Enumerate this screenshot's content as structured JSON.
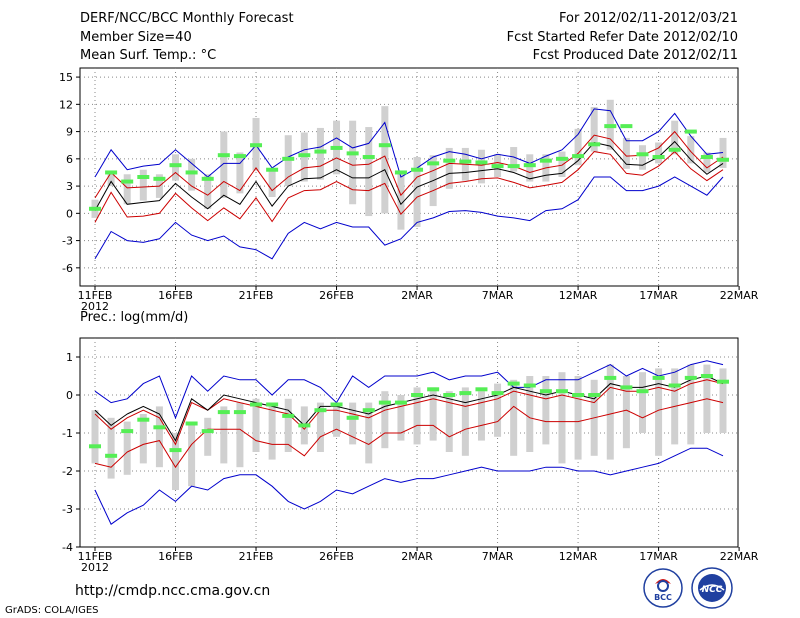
{
  "header": {
    "title": "DERF/NCC/BCC Monthly Forecast",
    "member_size": "Member Size=40",
    "variable": "Mean Surf. Temp.: °C",
    "period": "For 2012/02/11-2012/03/21",
    "start_date": "Fcst Started Refer Date 2012/02/10",
    "produced_date": "Fcst Produced Date 2012/02/11"
  },
  "footer": {
    "url": "http://cmdp.ncc.cma.gov.cn",
    "credit": "GrADS: COLA/IGES",
    "logo_left_text": "BCC",
    "logo_right_text": "NCC"
  },
  "colors": {
    "max_min": "#0000cc",
    "mean": "#000000",
    "lower": "#cc0000",
    "obs": "#55ee55",
    "spread": "#d0d0d0"
  },
  "chart_data": [
    {
      "type": "line",
      "title": "Mean Surf. Temp.: °C",
      "x_ticks": [
        "11FEB",
        "16FEB",
        "21FEB",
        "26FEB",
        "2MAR",
        "7MAR",
        "12MAR",
        "17MAR",
        "22MAR"
      ],
      "x_year": "2012",
      "days": 40,
      "ylim": [
        -8,
        16
      ],
      "y_ticks": [
        -6,
        -3,
        0,
        3,
        6,
        9,
        12,
        15
      ],
      "y_tick_labels": [
        "-6",
        "-3",
        "0",
        "3",
        "6",
        "9",
        "12",
        "15"
      ],
      "series": [
        {
          "name": "max",
          "color": "#0000cc",
          "values": [
            4,
            7,
            4.8,
            5.2,
            5.4,
            7,
            5.5,
            4,
            5.5,
            5.5,
            7.5,
            5,
            6.2,
            7,
            7.3,
            8.3,
            7.2,
            7.7,
            10,
            4,
            5,
            6.2,
            6.8,
            6.5,
            6,
            6.5,
            6.2,
            5.5,
            6.3,
            7,
            8.7,
            11.5,
            11.3,
            8,
            8,
            9,
            11,
            8.5,
            6.5,
            6.7
          ]
        },
        {
          "name": "upper",
          "color": "#cc0000",
          "values": [
            1.7,
            4.5,
            2.8,
            2.9,
            3,
            4.5,
            3,
            2,
            3.5,
            2.5,
            5,
            2.5,
            4,
            5,
            5.2,
            6.1,
            5.3,
            5.4,
            6.3,
            2,
            4,
            4.7,
            5.5,
            5.4,
            5.3,
            5.6,
            5.2,
            4.5,
            5,
            5.3,
            6.6,
            8.6,
            8.2,
            6.3,
            6.4,
            7.2,
            9,
            6.8,
            5,
            6.2
          ]
        },
        {
          "name": "mean",
          "color": "#000000",
          "values": [
            0.3,
            3.5,
            1.0,
            1.2,
            1.4,
            3.3,
            1.8,
            0.5,
            2.0,
            1.0,
            3.5,
            0.8,
            3,
            3.8,
            3.9,
            4.8,
            3.9,
            3.9,
            4.8,
            1,
            2.9,
            3.6,
            4.4,
            4.5,
            4.7,
            4.9,
            4.5,
            3.8,
            4.2,
            4.4,
            5.8,
            7.8,
            7.4,
            5.4,
            5.3,
            6.2,
            7.9,
            5.9,
            4.3,
            5.5
          ]
        },
        {
          "name": "lower",
          "color": "#cc0000",
          "values": [
            -1,
            2.3,
            -0.4,
            -0.3,
            0,
            2.2,
            0.6,
            -0.8,
            0.6,
            -0.6,
            1.7,
            -0.9,
            1.7,
            2.5,
            2.6,
            3.5,
            2.6,
            2.5,
            3.3,
            -0.1,
            1.8,
            2.5,
            3.3,
            3.5,
            3.8,
            3.9,
            3.4,
            2.8,
            3.1,
            3.4,
            4.8,
            6.8,
            6.5,
            4.4,
            4.2,
            5.2,
            6.8,
            4.9,
            3.6,
            4.8
          ]
        },
        {
          "name": "min",
          "color": "#0000cc",
          "values": [
            -5,
            -2,
            -3,
            -3.2,
            -2.8,
            -1,
            -2.4,
            -3,
            -2.5,
            -3.7,
            -4,
            -5,
            -2.2,
            -1,
            -1.7,
            -1,
            -1.5,
            -1.5,
            -3.5,
            -2.8,
            -1,
            -0.5,
            0.2,
            0.3,
            0.1,
            -0.3,
            -0.5,
            -0.8,
            0.3,
            0.5,
            1.5,
            4,
            4,
            2.5,
            2.5,
            3,
            4,
            3,
            2,
            4
          ]
        },
        {
          "name": "ens_low",
          "color": "#d0d0d0",
          "values": [
            -0.5,
            3,
            1,
            1.4,
            1.7,
            3.6,
            2.5,
            0.5,
            1.7,
            2.2,
            4.7,
            1.8,
            3,
            3.5,
            3.7,
            4.3,
            1,
            -0.3,
            0,
            -1.8,
            -1.5,
            0.8,
            2.7,
            3.6,
            3.3,
            4,
            4.6,
            3.5,
            3.5,
            4,
            5.3,
            6.8,
            7,
            4.9,
            4.8,
            5.5,
            6.5,
            5.5,
            4.5,
            5
          ]
        },
        {
          "name": "ens_high",
          "color": "#d0d0d0",
          "values": [
            1.5,
            4.5,
            4.3,
            4.8,
            4.3,
            6.5,
            6,
            4.3,
            9,
            6.7,
            10.5,
            4.7,
            8.6,
            8.9,
            9.4,
            10.2,
            10.2,
            9.5,
            11.8,
            4.7,
            6.2,
            6.4,
            7.2,
            7.2,
            7,
            6.5,
            7.3,
            6.5,
            6.5,
            6.8,
            9.3,
            11.7,
            12.5,
            8.3,
            7.5,
            7.8,
            10.2,
            8.5,
            6.7,
            8.3
          ]
        },
        {
          "name": "obs",
          "color": "#55ee55",
          "values": [
            0.5,
            4.5,
            3.5,
            4,
            3.8,
            5.3,
            4.5,
            3.8,
            6.4,
            6.3,
            7.5,
            4.8,
            6,
            6.4,
            6.8,
            7.2,
            6.6,
            6.2,
            7.5,
            4.5,
            4.8,
            5.5,
            5.8,
            5.7,
            5.6,
            5.2,
            5.2,
            5.3,
            5.8,
            6,
            6.3,
            7.6,
            9.6,
            9.6,
            6.5,
            6.2,
            7,
            9,
            6.2,
            5.9
          ]
        }
      ]
    },
    {
      "type": "line",
      "title": "Prec.: log(mm/d)",
      "x_ticks": [
        "11FEB",
        "16FEB",
        "21FEB",
        "26FEB",
        "2MAR",
        "7MAR",
        "12MAR",
        "17MAR",
        "22MAR"
      ],
      "x_year": "2012",
      "days": 40,
      "ylim": [
        -4,
        1.5
      ],
      "y_ticks": [
        -4,
        -3,
        -2,
        -1,
        0,
        1
      ],
      "y_tick_labels": [
        "-4",
        "-3",
        "-2",
        "-1",
        "0",
        "1"
      ],
      "series": [
        {
          "name": "max",
          "color": "#0000cc",
          "values": [
            0.1,
            -0.2,
            -0.1,
            0.3,
            0.5,
            -0.6,
            0.5,
            0.1,
            0.5,
            0.4,
            0.4,
            0,
            0.4,
            0.4,
            0.2,
            -0.2,
            0.5,
            0.2,
            0.5,
            0.5,
            0.5,
            0.6,
            0.4,
            0.5,
            0.5,
            0.6,
            0.2,
            0.2,
            0.4,
            0.4,
            0.4,
            0.6,
            0.8,
            0.5,
            0.7,
            0.5,
            0.6,
            0.8,
            0.9,
            0.8
          ]
        },
        {
          "name": "mean",
          "color": "#000000",
          "values": [
            -0.4,
            -0.8,
            -0.5,
            -0.3,
            -0.5,
            -1.2,
            -0.1,
            -0.4,
            0,
            -0.1,
            -0.2,
            -0.3,
            -0.4,
            -0.8,
            -0.3,
            -0.3,
            -0.4,
            -0.5,
            -0.3,
            -0.2,
            -0.1,
            0,
            -0.1,
            -0.2,
            -0.1,
            0,
            0.2,
            0.1,
            0,
            0.1,
            0,
            -0.1,
            0.3,
            0.2,
            0.2,
            0.3,
            0.2,
            0.4,
            0.5,
            0.3
          ]
        },
        {
          "name": "upper",
          "color": "#cc0000",
          "values": [
            -0.5,
            -0.9,
            -0.6,
            -0.4,
            -0.6,
            -1.3,
            -0.2,
            -0.4,
            -0.1,
            -0.2,
            -0.3,
            -0.4,
            -0.5,
            -0.9,
            -0.4,
            -0.4,
            -0.5,
            -0.6,
            -0.4,
            -0.3,
            -0.2,
            -0.1,
            -0.2,
            -0.3,
            -0.2,
            -0.1,
            0.1,
            0,
            -0.1,
            0,
            -0.1,
            -0.2,
            0.2,
            0.1,
            0.1,
            0.2,
            0.1,
            0.3,
            0.4,
            0.3
          ]
        },
        {
          "name": "lower",
          "color": "#cc0000",
          "values": [
            -1.8,
            -1.9,
            -1.5,
            -1.3,
            -1.2,
            -1.9,
            -1.3,
            -0.9,
            -0.9,
            -0.9,
            -1.2,
            -1.3,
            -1.3,
            -1.6,
            -1.1,
            -0.9,
            -1.1,
            -1.3,
            -1,
            -1,
            -0.8,
            -0.8,
            -1.1,
            -0.9,
            -0.8,
            -0.7,
            -0.3,
            -0.6,
            -0.7,
            -0.7,
            -0.7,
            -0.6,
            -0.5,
            -0.4,
            -0.6,
            -0.4,
            -0.3,
            -0.2,
            -0.1,
            -0.2
          ]
        },
        {
          "name": "min",
          "color": "#0000cc",
          "values": [
            -2.5,
            -3.4,
            -3.1,
            -2.9,
            -2.5,
            -2.8,
            -2.4,
            -2.5,
            -2.2,
            -2.1,
            -2.1,
            -2.4,
            -2.8,
            -3.0,
            -2.8,
            -2.5,
            -2.6,
            -2.4,
            -2.2,
            -2.3,
            -2.2,
            -2.2,
            -2.1,
            -2.0,
            -1.9,
            -2.0,
            -2.0,
            -2.0,
            -1.9,
            -1.9,
            -2.0,
            -2.0,
            -2.1,
            -2.0,
            -1.9,
            -1.8,
            -1.6,
            -1.4,
            -1.4,
            -1.6
          ]
        },
        {
          "name": "ens_low",
          "color": "#d0d0d0",
          "values": [
            -1.8,
            -2.2,
            -2.1,
            -1.8,
            -1.9,
            -2.5,
            -2.4,
            -1.6,
            -1.8,
            -1.9,
            -1.5,
            -1.7,
            -1.5,
            -1.3,
            -1.5,
            -1.1,
            -1.3,
            -1.8,
            -1.4,
            -1.2,
            -1.3,
            -1.2,
            -1.5,
            -1.6,
            -1.2,
            -1.1,
            -1.6,
            -1.5,
            -1.3,
            -1.8,
            -1.7,
            -1.6,
            -1.7,
            -1.4,
            -1.0,
            -1.6,
            -1.3,
            -1.3,
            -1.0,
            -1.0
          ]
        },
        {
          "name": "ens_high",
          "color": "#d0d0d0",
          "values": [
            -0.4,
            -0.6,
            -0.7,
            -0.5,
            -0.3,
            -1.0,
            -0.8,
            -0.6,
            -0.3,
            -0.2,
            -0.1,
            -0.2,
            -0.1,
            -0.3,
            -0.2,
            -0.2,
            -0.2,
            -0.2,
            0.1,
            0.0,
            0.2,
            0.2,
            0.1,
            0.2,
            0.1,
            0.3,
            0.4,
            0.5,
            0.5,
            0.6,
            0.5,
            0.4,
            0.8,
            0.5,
            0.6,
            0.7,
            0.7,
            0.8,
            0.8,
            0.7
          ]
        },
        {
          "name": "obs",
          "color": "#55ee55",
          "values": [
            -1.35,
            -1.6,
            -0.95,
            -0.65,
            -0.85,
            -1.45,
            -0.75,
            -0.95,
            -0.45,
            -0.45,
            -0.25,
            -0.25,
            -0.55,
            -0.8,
            -0.4,
            -0.25,
            -0.6,
            -0.4,
            -0.2,
            -0.2,
            0,
            0.15,
            0,
            0.05,
            0.15,
            0.05,
            0.3,
            0.25,
            0.1,
            0.1,
            0,
            0,
            0.45,
            0.2,
            0.1,
            0.45,
            0.25,
            0.45,
            0.5,
            0.35
          ]
        }
      ]
    }
  ]
}
